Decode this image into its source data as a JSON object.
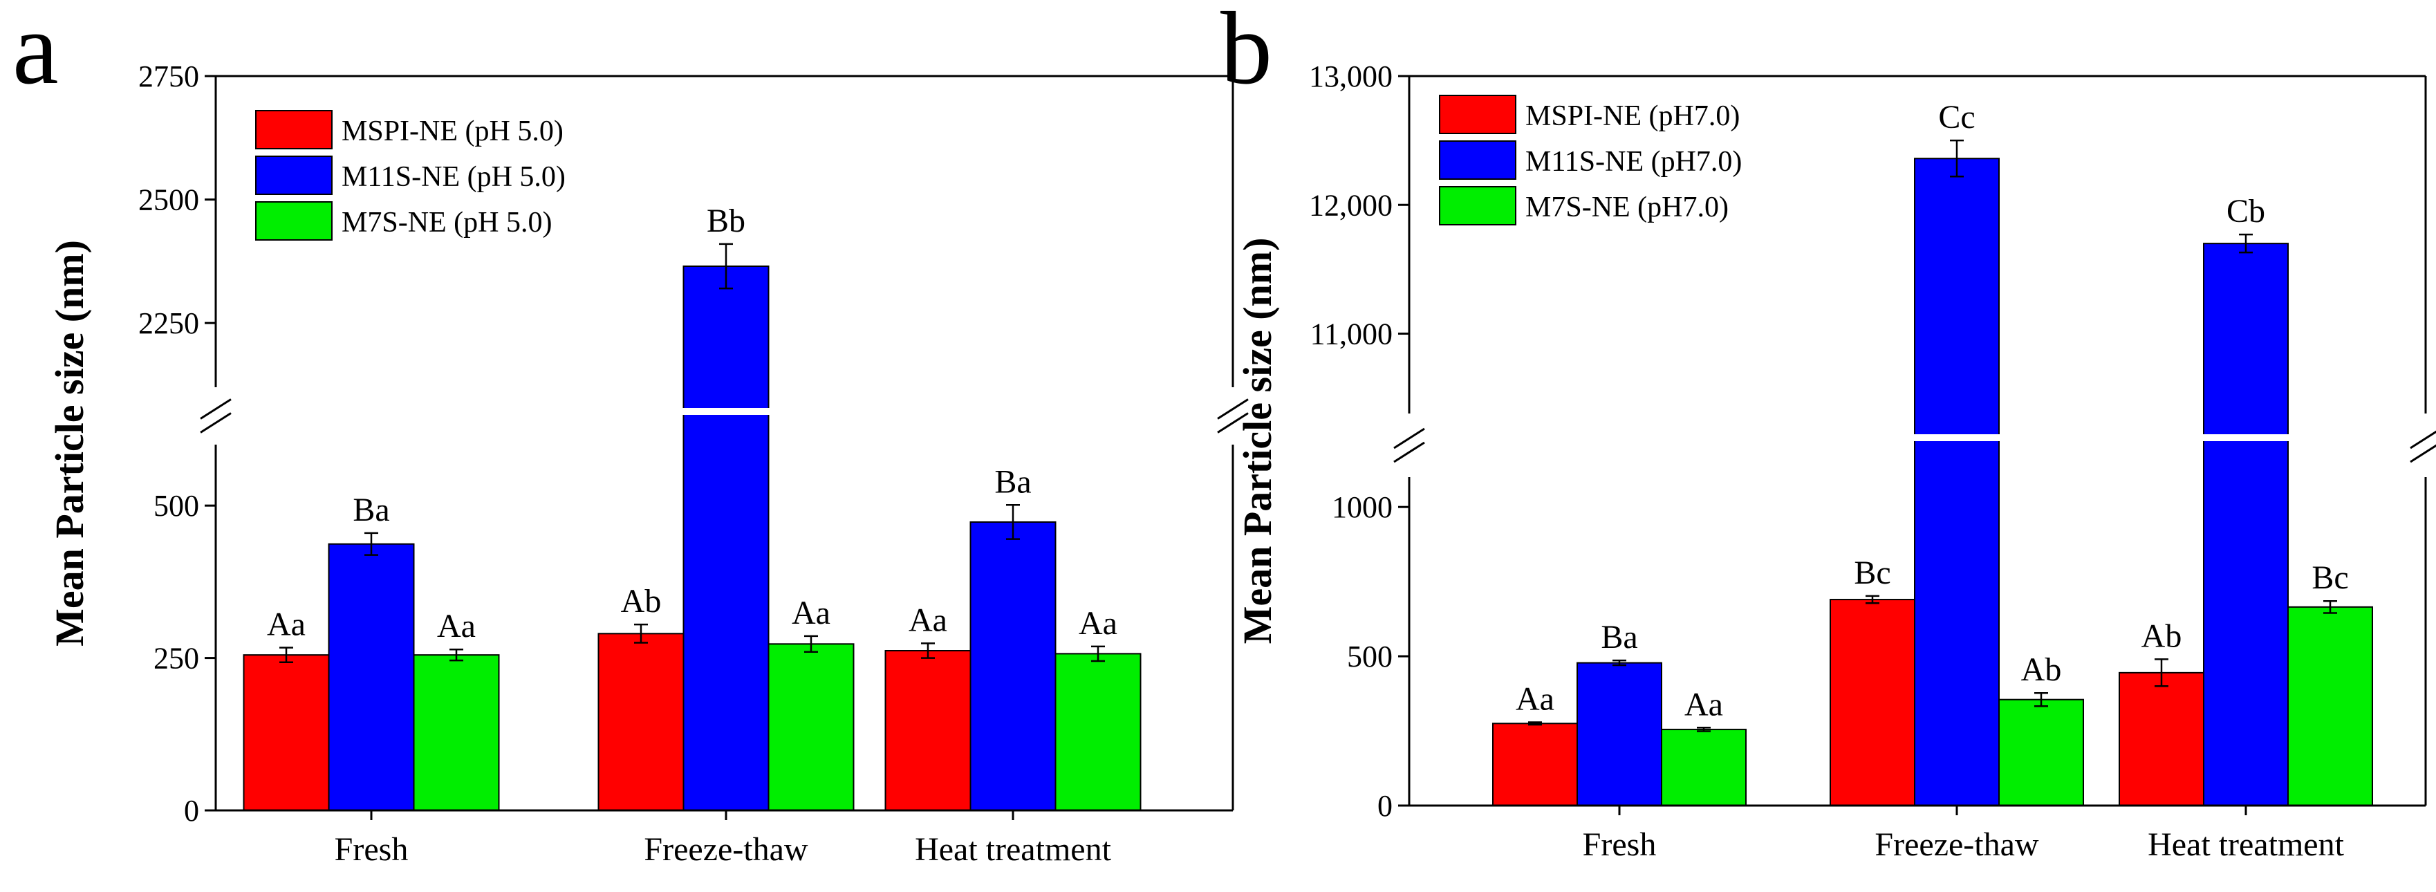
{
  "chart_data": [
    {
      "type": "bar",
      "panel_letter": "a",
      "categories": [
        "Fresh",
        "Freeze-thaw",
        "Heat treatment"
      ],
      "ylabel": "Mean Particle size (nm)",
      "xlabel": "",
      "y_axis_break": true,
      "ylim_lower": [
        0,
        600
      ],
      "ylim_upper": [
        2120,
        2750
      ],
      "yticks_lower": [
        "0",
        "250",
        "500"
      ],
      "yticks_upper": [
        "2250",
        "2500",
        "2750"
      ],
      "legend_position": "top-left",
      "series": [
        {
          "name": "MSPI-NE (pH 5.0)",
          "color": "#ff0000",
          "values": [
            255,
            290,
            262
          ],
          "errors": [
            12,
            15,
            12
          ],
          "labels": [
            "Aa",
            "Ab",
            "Aa"
          ]
        },
        {
          "name": "M11S-NE (pH 5.0)",
          "color": "#0000ff",
          "values": [
            437,
            2365,
            473
          ],
          "errors": [
            18,
            45,
            28
          ],
          "labels": [
            "Ba",
            "Bb",
            "Ba"
          ]
        },
        {
          "name": "M7S-NE (pH 5.0)",
          "color": "#00ee00",
          "values": [
            255,
            273,
            257
          ],
          "errors": [
            9,
            13,
            12
          ],
          "labels": [
            "Aa",
            "Aa",
            "Aa"
          ]
        }
      ]
    },
    {
      "type": "bar",
      "panel_letter": "b",
      "categories": [
        "Fresh",
        "Freeze-thaw",
        "Heat treatment"
      ],
      "ylabel": "Mean Particle size (nm)",
      "xlabel": "",
      "y_axis_break": true,
      "ylim_lower": [
        0,
        1100
      ],
      "ylim_upper": [
        10380,
        13000
      ],
      "yticks_lower": [
        "0",
        "500",
        "1000"
      ],
      "yticks_upper": [
        "11,000",
        "12,000",
        "13,000"
      ],
      "legend_position": "top-left",
      "series": [
        {
          "name": "MSPI-NE (pH7.0)",
          "color": "#ff0000",
          "values": [
            275,
            690,
            445
          ],
          "errors": [
            4,
            12,
            45
          ],
          "labels": [
            "Aa",
            "Bc",
            "Ab"
          ]
        },
        {
          "name": "M11S-NE (pH7.0)",
          "color": "#0000ff",
          "values": [
            478,
            12360,
            11700
          ],
          "errors": [
            8,
            140,
            70
          ],
          "labels": [
            "Ba",
            "Cc",
            "Cb"
          ]
        },
        {
          "name": "M7S-NE (pH7.0)",
          "color": "#00ee00",
          "values": [
            255,
            355,
            665
          ],
          "errors": [
            6,
            22,
            20
          ],
          "labels": [
            "Aa",
            "Ab",
            "Bc"
          ]
        }
      ]
    }
  ]
}
